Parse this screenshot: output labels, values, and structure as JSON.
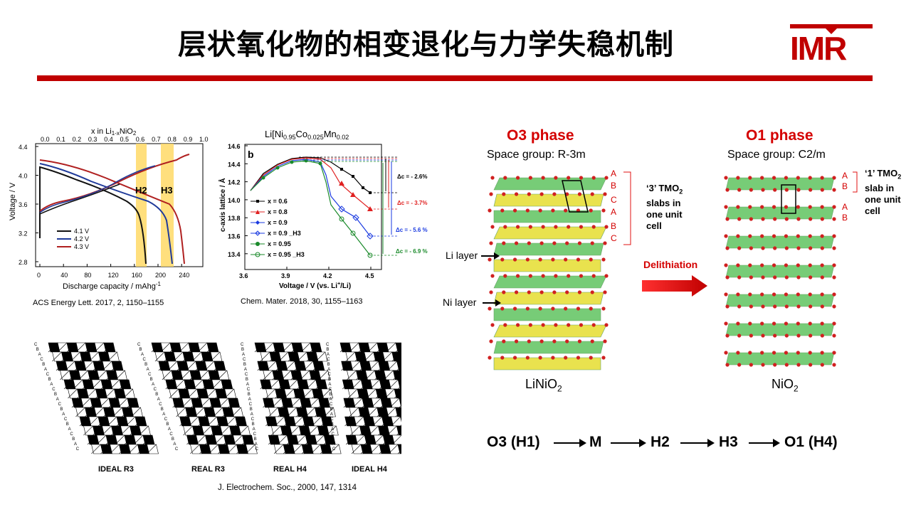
{
  "slide": {
    "title": "层状氧化物的相变退化与力学失稳机制",
    "logo_text": "IMR",
    "colors": {
      "accent": "#c00000",
      "phase_red": "#e01010",
      "green": "#6cc86c",
      "yellow": "#e8e040"
    }
  },
  "chart1": {
    "top_axis_label": "x in Li1-xNiO2",
    "top_ticks": [
      "0.0",
      "0.1",
      "0.2",
      "0.3",
      "0.4",
      "0.5",
      "0.6",
      "0.7",
      "0.8",
      "0.9",
      "1.0"
    ],
    "y_ticks": [
      "4.4",
      "4.0",
      "3.6",
      "3.2",
      "2.8"
    ],
    "x_ticks": [
      "0",
      "40",
      "80",
      "120",
      "160",
      "200",
      "240"
    ],
    "ylabel": "Voltage / V",
    "xlabel": "Discharge capacity / mAhg-1",
    "band_labels": [
      "H2",
      "H3"
    ],
    "legend": [
      "4.1 V",
      "4.2 V",
      "4.3 V"
    ],
    "caption": "ACS Energy Lett. 2017, 2, 1150–1155"
  },
  "chart2": {
    "title": "Li[Ni0.95Co0.025Mn0.02",
    "panel_letter": "b",
    "y_ticks": [
      "14.6",
      "14.4",
      "14.2",
      "14.0",
      "13.8",
      "13.6",
      "13.4"
    ],
    "x_ticks": [
      "3.6",
      "3.9",
      "4.2",
      "4.5"
    ],
    "ylabel": "c-axis lattice / Å",
    "xlabel": "Voltage / V (vs. Li+/Li)",
    "legend": [
      "x = 0.6",
      "x = 0.8",
      "x = 0.9",
      "x = 0.9 _H3",
      "x = 0.95",
      "x = 0.95 _H3"
    ],
    "deltas": [
      "Δc = - 2.6%",
      "Δc = - 3.7%",
      "Δc = - 5.6 %",
      "Δc = - 6.9 %"
    ],
    "caption": "Chem. Mater. 2018, 30, 1155–1163"
  },
  "stacking": {
    "labels": [
      "IDEAL R3",
      "REAL R3",
      "REAL H4",
      "IDEAL H4"
    ],
    "caption": "J. Electrochem. Soc., 2000, 147, 1314"
  },
  "structures": {
    "o3_title": "O3 phase",
    "o3_space_group": "Space group: R-3m",
    "o1_title": "O1 phase",
    "o1_space_group": "Space group: C2/m",
    "o3_stack": [
      "A",
      "B",
      "C",
      "A",
      "B",
      "C"
    ],
    "o1_stack": [
      "A",
      "B",
      "A",
      "B"
    ],
    "o3_note": "‘3’ TMO2 slabs in one unit cell",
    "o1_note": "‘1’ TMO2 slab in one unit cell",
    "li_layer": "Li layer",
    "ni_layer": "Ni layer",
    "delithiation": "Delithiation",
    "o3_compound": "LiNiO2",
    "o1_compound": "NiO2"
  },
  "sequence": [
    "O3 (H1)",
    "M",
    "H2",
    "H3",
    "O1 (H4)"
  ]
}
